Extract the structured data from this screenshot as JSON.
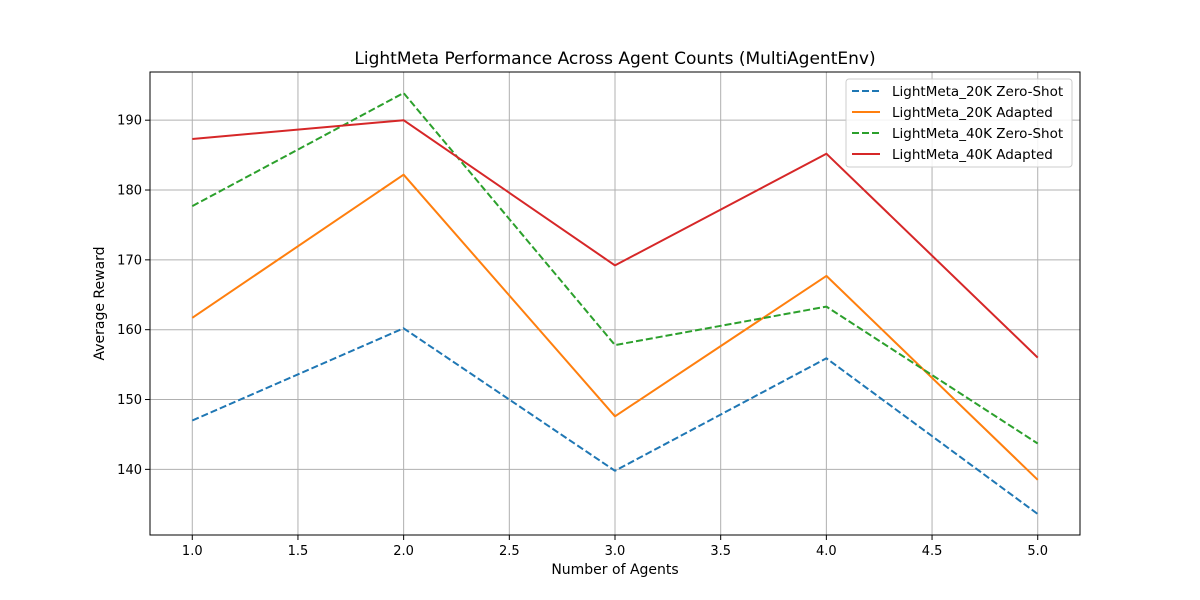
{
  "chart_data": {
    "type": "line",
    "title": "LightMeta Performance Across Agent Counts (MultiAgentEnv)",
    "xlabel": "Number of Agents",
    "ylabel": "Average Reward",
    "xlim": [
      0.8,
      5.2
    ],
    "ylim": [
      130.6,
      196.9
    ],
    "xticks": [
      1.0,
      1.5,
      2.0,
      2.5,
      3.0,
      3.5,
      4.0,
      4.5,
      5.0
    ],
    "xtick_labels": [
      "1.0",
      "1.5",
      "2.0",
      "2.5",
      "3.0",
      "3.5",
      "4.0",
      "4.5",
      "5.0"
    ],
    "yticks": [
      140,
      150,
      160,
      170,
      180,
      190
    ],
    "ytick_labels": [
      "140",
      "150",
      "160",
      "170",
      "180",
      "190"
    ],
    "grid": true,
    "legend_position": "top-right",
    "x": [
      1,
      2,
      3,
      4,
      5
    ],
    "series": [
      {
        "name": "LightMeta_20K Zero-Shot",
        "color": "#1f77b4",
        "dashed": true,
        "values": [
          147.0,
          160.2,
          139.8,
          155.9,
          133.6
        ]
      },
      {
        "name": "LightMeta_20K Adapted",
        "color": "#ff7f0e",
        "dashed": false,
        "values": [
          161.7,
          182.2,
          147.6,
          167.7,
          138.5
        ]
      },
      {
        "name": "LightMeta_40K Zero-Shot",
        "color": "#2ca02c",
        "dashed": true,
        "values": [
          177.7,
          193.9,
          157.8,
          163.3,
          143.7
        ]
      },
      {
        "name": "LightMeta_40K Adapted",
        "color": "#d62728",
        "dashed": false,
        "values": [
          187.3,
          190.0,
          169.2,
          185.2,
          156.0
        ]
      }
    ]
  }
}
